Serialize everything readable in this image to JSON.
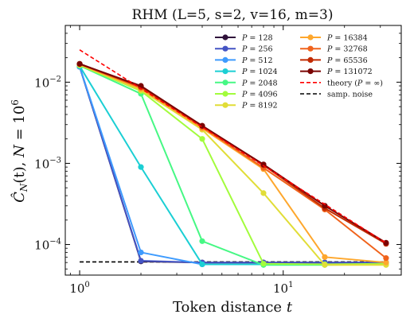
{
  "chart_data": {
    "type": "line",
    "title": "RHM (L=5, s=2, v=16, m=3)",
    "xlabel_text": "Token distance ",
    "xlabel_var": "t",
    "ylabel_text": "Ĉ",
    "ylabel_sub": "N",
    "ylabel_arg": "(t), ",
    "ylabel_N": "N",
    "ylabel_eq": " = 10",
    "ylabel_exp": "6",
    "xscale": "log",
    "yscale": "log",
    "xlim": [
      0.85,
      38
    ],
    "ylim": [
      4.2e-05,
      0.05
    ],
    "grid": false,
    "legend_placement": "top-right",
    "x_ticks": [
      {
        "value": 1,
        "base": "10",
        "exp": "0"
      },
      {
        "value": 10,
        "base": "10",
        "exp": "1"
      }
    ],
    "y_ticks": [
      {
        "value": 0.0001,
        "base": "10",
        "exp": "−4"
      },
      {
        "value": 0.001,
        "base": "10",
        "exp": "−3"
      },
      {
        "value": 0.01,
        "base": "10",
        "exp": "−2"
      }
    ],
    "x": [
      1,
      2,
      4,
      8,
      16,
      32
    ],
    "series": [
      {
        "name": "P = 128",
        "legend_var": "P",
        "legend_val": " = 128",
        "color": "#30123b",
        "values": [
          0.0155,
          6.2e-05,
          6e-05,
          6e-05,
          6e-05,
          6e-05
        ]
      },
      {
        "name": "P = 256",
        "legend_var": "P",
        "legend_val": " = 256",
        "color": "#4454c4",
        "values": [
          0.0155,
          6.3e-05,
          6e-05,
          6e-05,
          6e-05,
          6e-05
        ]
      },
      {
        "name": "P = 512",
        "legend_var": "P",
        "legend_val": " = 512",
        "color": "#3e9bfe",
        "values": [
          0.0155,
          8e-05,
          5.7e-05,
          5.7e-05,
          5.7e-05,
          5.7e-05
        ]
      },
      {
        "name": "P = 1024",
        "legend_var": "P",
        "legend_val": " = 1024",
        "color": "#1bcfd4",
        "values": [
          0.0158,
          0.0009,
          5.7e-05,
          5.7e-05,
          5.7e-05,
          5.7e-05
        ]
      },
      {
        "name": "P = 2048",
        "legend_var": "P",
        "legend_val": " = 2048",
        "color": "#46f884",
        "values": [
          0.016,
          0.0072,
          0.00011,
          5.6e-05,
          5.6e-05,
          5.7e-05
        ]
      },
      {
        "name": "P = 4096",
        "legend_var": "P",
        "legend_val": " = 4096",
        "color": "#a2fc3c",
        "values": [
          0.0162,
          0.0078,
          0.002,
          5.8e-05,
          5.7e-05,
          5.8e-05
        ]
      },
      {
        "name": "P = 8192",
        "legend_var": "P",
        "legend_val": " = 8192",
        "color": "#e1dd37",
        "values": [
          0.0164,
          0.008,
          0.0026,
          0.00043,
          5.6e-05,
          5.6e-05
        ]
      },
      {
        "name": "P = 16384",
        "legend_var": "P",
        "legend_val": " = 16384",
        "color": "#fea72d",
        "values": [
          0.0166,
          0.0083,
          0.0027,
          0.00085,
          7e-05,
          6e-05
        ]
      },
      {
        "name": "P = 32768",
        "legend_var": "P",
        "legend_val": " = 32768",
        "color": "#f0631c",
        "values": [
          0.0167,
          0.0086,
          0.0028,
          0.00088,
          0.00027,
          6.8e-05
        ]
      },
      {
        "name": "P = 65536",
        "legend_var": "P",
        "legend_val": " = 65536",
        "color": "#c22b03",
        "values": [
          0.0168,
          0.0088,
          0.0029,
          0.00095,
          0.00028,
          0.000102
        ]
      },
      {
        "name": "P = 131072",
        "legend_var": "P",
        "legend_val": " = 131072",
        "color": "#7a0403",
        "values": [
          0.0168,
          0.009,
          0.0029,
          0.00097,
          0.0003,
          0.000105
        ]
      }
    ],
    "theory": {
      "name": "theory (P = ∞)",
      "legend_pre": "theory (",
      "legend_var": "P",
      "legend_post": " = ∞)",
      "color": "#ff0000",
      "x_range": [
        1,
        32
      ],
      "y_at_1": 0.025,
      "exponent": -1.58
    },
    "noise": {
      "name": "samp. noise",
      "color": "#000000",
      "x_range": [
        1,
        32
      ],
      "value": 6.1e-05
    }
  }
}
